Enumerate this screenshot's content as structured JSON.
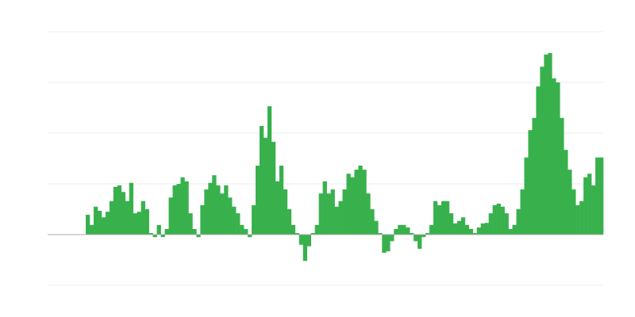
{
  "chart_data": {
    "type": "bar",
    "title": "",
    "xlabel": "",
    "ylabel": "",
    "ylim": [
      -1,
      4
    ],
    "gridlines": [
      -1,
      0,
      1,
      2,
      3,
      4
    ],
    "grid": true,
    "legend": "none",
    "bar_color": "#38b14d",
    "grid_color": "#ececec",
    "baseline_color": "#a8a8a8",
    "values": [
      0.39,
      0.19,
      0.55,
      0.47,
      0.34,
      0.45,
      0.66,
      0.94,
      0.97,
      0.84,
      0.66,
      1.02,
      0.42,
      0.45,
      0.66,
      0.5,
      0.03,
      -0.05,
      0.19,
      -0.05,
      0.11,
      0.73,
      0.97,
      1.0,
      1.13,
      1.05,
      0.42,
      0.11,
      -0.05,
      0.58,
      0.89,
      1.02,
      1.17,
      0.97,
      0.81,
      0.97,
      0.73,
      0.55,
      0.42,
      0.19,
      0.11,
      -0.05,
      0.58,
      1.36,
      2.14,
      1.91,
      2.53,
      1.83,
      1.05,
      1.36,
      0.89,
      0.5,
      0.19,
      0.03,
      -0.2,
      -0.52,
      -0.23,
      0.03,
      0.19,
      0.81,
      1.05,
      0.81,
      0.89,
      0.55,
      0.66,
      0.89,
      1.2,
      1.13,
      1.28,
      1.36,
      1.28,
      0.81,
      0.5,
      0.27,
      0.03,
      -0.36,
      -0.33,
      -0.13,
      0.11,
      0.19,
      0.19,
      0.14,
      0.03,
      -0.13,
      -0.28,
      -0.05,
      0.03,
      0.19,
      0.66,
      0.58,
      0.66,
      0.66,
      0.42,
      0.22,
      0.27,
      0.34,
      0.19,
      0.11,
      0.03,
      0.14,
      0.22,
      0.23,
      0.42,
      0.58,
      0.61,
      0.55,
      0.42,
      0.11,
      0.19,
      0.5,
      0.89,
      1.52,
      2.06,
      2.3,
      2.92,
      3.31,
      3.55,
      3.58,
      3.08,
      3.0,
      2.3,
      1.67,
      1.28,
      0.89,
      0.58,
      0.66,
      1.13,
      1.2,
      0.97,
      1.52,
      1.52
    ]
  }
}
